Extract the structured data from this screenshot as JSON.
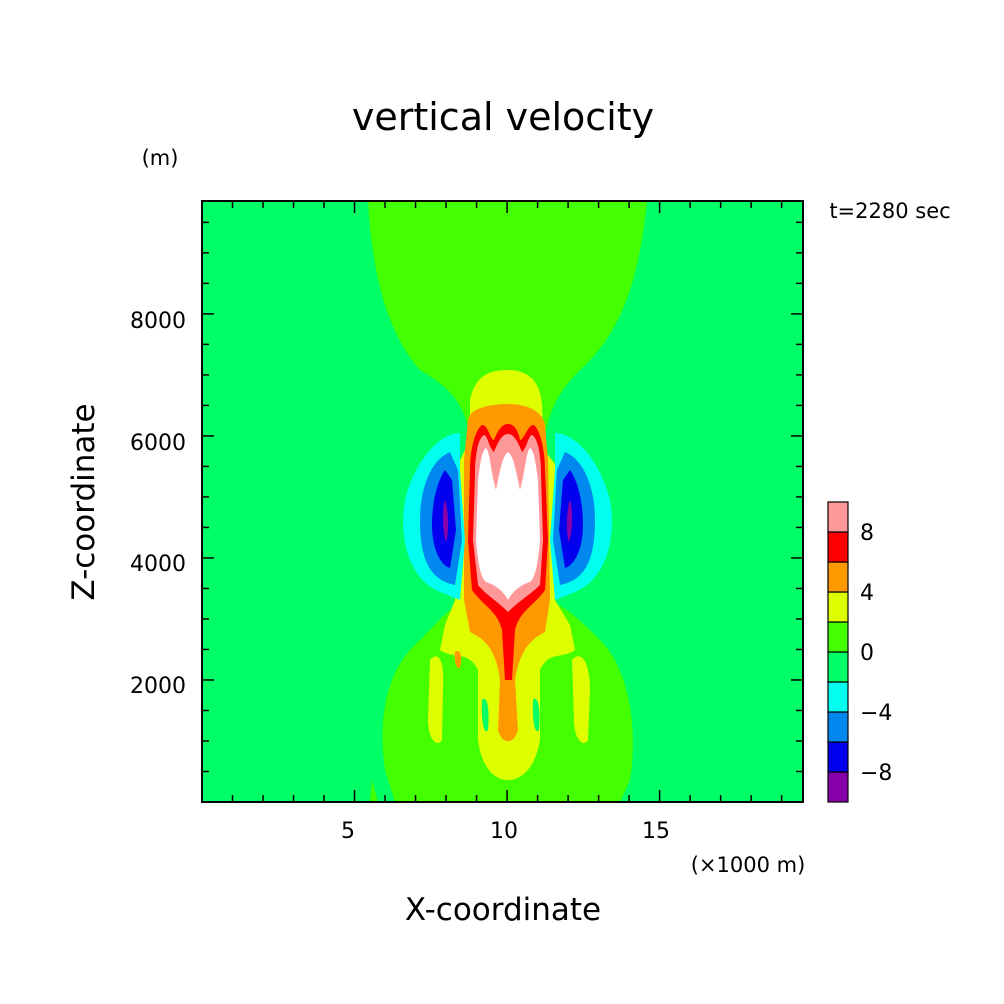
{
  "chart_data": {
    "type": "heatmap",
    "title": "vertical velocity",
    "time_label": "t=2280 sec",
    "xlabel": "X-coordinate",
    "x_unit": "(×1000 m)",
    "ylabel": "Z-coordinate",
    "y_unit": "(m)",
    "xlim": [
      0,
      19.7
    ],
    "ylim": [
      0,
      9850
    ],
    "x_ticks": [
      "5",
      "10",
      "15"
    ],
    "y_ticks": [
      "2000",
      "4000",
      "6000",
      "8000"
    ],
    "colorbar": {
      "labels": [
        "8",
        "4",
        "0",
        "-4",
        "-8"
      ],
      "levels": [
        -10,
        -8,
        -6,
        -4,
        -2,
        0,
        2,
        4,
        6,
        8,
        10
      ],
      "colors": [
        "#8800aa",
        "#0000ee",
        "#0088ee",
        "#00ffee",
        "#00ff66",
        "#44ff00",
        "#ddff00",
        "#ff9900",
        "#ff0000",
        "#ff9999"
      ]
    },
    "background_color": "#00ff66",
    "above_max_color": "#ffffff",
    "features": [
      {
        "name": "central updraft core",
        "sign": "positive",
        "max_value": "> 10",
        "x_range": [
          8.9,
          11.6
        ],
        "z_range": [
          3600,
          6100
        ]
      },
      {
        "name": "left downdraft",
        "sign": "negative",
        "min_value": "< -8",
        "x_center": 8.0,
        "z_center": 4800
      },
      {
        "name": "right downdraft",
        "sign": "negative",
        "min_value": "< -8",
        "x_center": 12.3,
        "z_center": 4800
      }
    ]
  }
}
